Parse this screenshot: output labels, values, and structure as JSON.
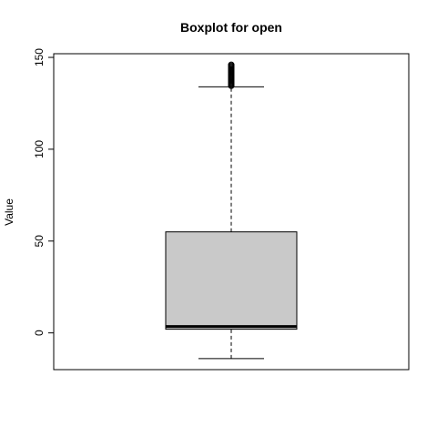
{
  "chart_data": {
    "type": "boxplot",
    "title": "Boxplot for open",
    "xlabel": "",
    "ylabel": "Value",
    "ylim": [
      -20,
      152
    ],
    "yticks": [
      0,
      50,
      100,
      150
    ],
    "grid": false,
    "series": [
      {
        "whisker_low": -14,
        "q1": 2,
        "median": 3.5,
        "q3": 55,
        "whisker_high": 134,
        "outliers": [
          134.5,
          135,
          135.5,
          136,
          136.5,
          137,
          137.5,
          138,
          138.5,
          139,
          139.5,
          140,
          140.5,
          141,
          141.5,
          142,
          142.5,
          143,
          143.5,
          144,
          144.5,
          145,
          145.5,
          146
        ]
      }
    ],
    "colors": {
      "box_fill": "#c9c9c9",
      "stroke": "#000000"
    }
  }
}
